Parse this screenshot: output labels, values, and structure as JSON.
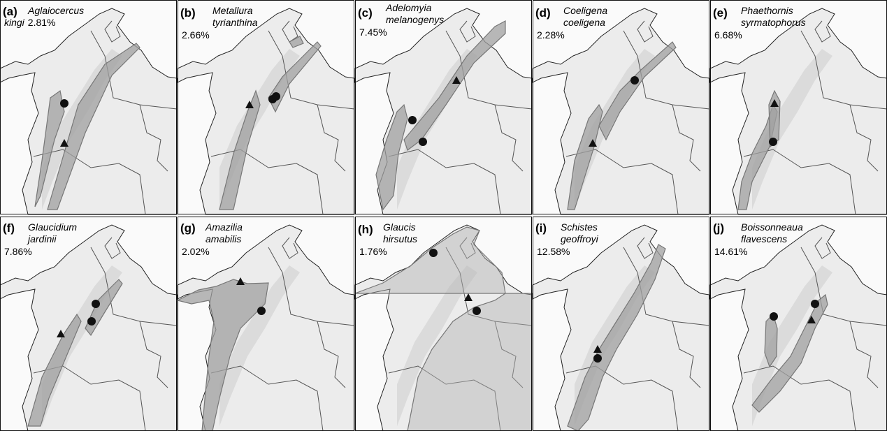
{
  "panels": [
    {
      "letter": "(a)",
      "genus": "Aglaiocercus",
      "species": "kingi",
      "percent": "2.81%"
    },
    {
      "letter": "(b)",
      "genus": "Metallura",
      "species": "tyrianthina",
      "percent": "2.66%"
    },
    {
      "letter": "(c)",
      "genus": "Adelomyia",
      "species": "melanogenys",
      "percent": "7.45%"
    },
    {
      "letter": "(d)",
      "genus": "Coeligena",
      "species": "coeligena",
      "percent": "2.28%"
    },
    {
      "letter": "(e)",
      "genus": "Phaethornis",
      "species": "syrmatophorus",
      "percent": "6.68%"
    },
    {
      "letter": "(f)",
      "genus": "Glaucidium",
      "species": "jardinii",
      "percent": "7.86%"
    },
    {
      "letter": "(g)",
      "genus": "Amazilia",
      "species": "amabilis",
      "percent": "2.02%"
    },
    {
      "letter": "(h)",
      "genus": "Glaucis",
      "species": "hirsutus",
      "percent": "1.76%"
    },
    {
      "letter": "(i)",
      "genus": "Schistes",
      "species": "geoffroyi",
      "percent": "12.58%"
    },
    {
      "letter": "(j)",
      "genus": "Boissonneaua",
      "species": "flavescens",
      "percent": "14.61%"
    }
  ]
}
